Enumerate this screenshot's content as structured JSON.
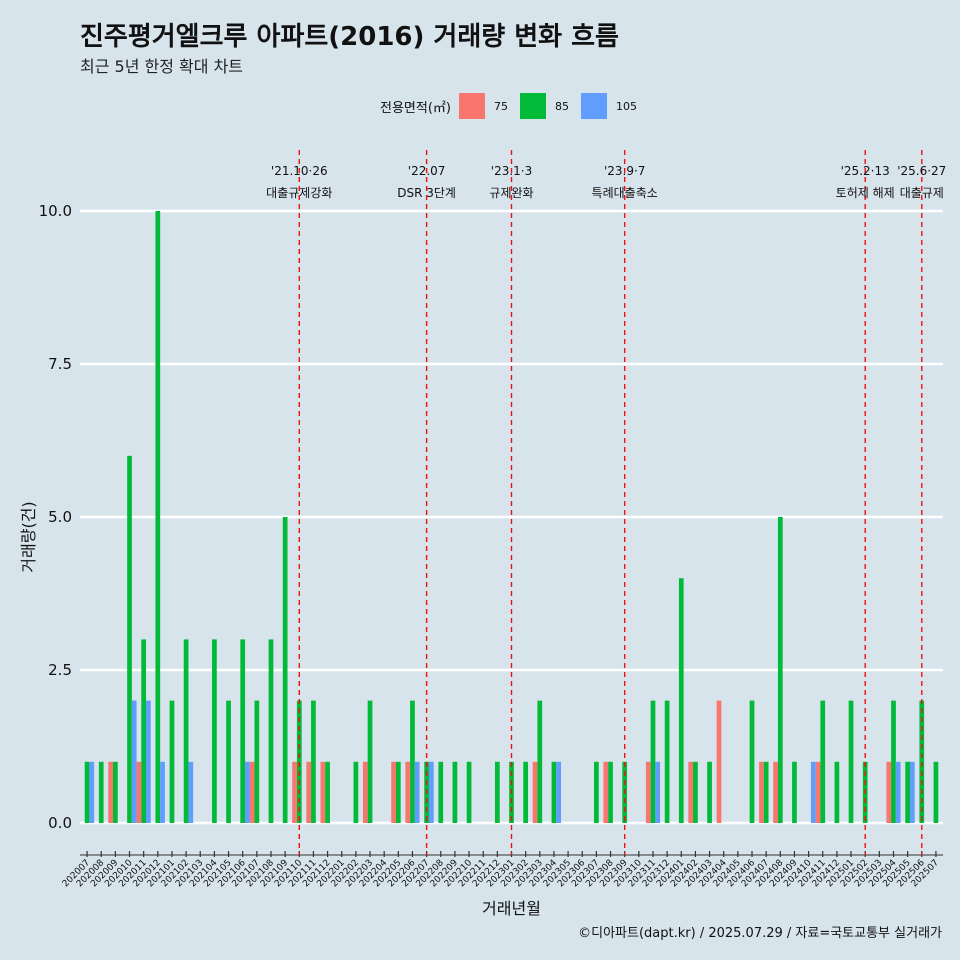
{
  "title": "진주평거엘크루 아파트(2016) 거래량 변화 흐름",
  "subtitle": "최근 5년 한정 확대 차트",
  "caption": "©디아파트(dapt.kr) / 2025.07.29 / 자료=국토교통부 실거래가",
  "legend": {
    "title": "전용면적(㎡)",
    "items": [
      {
        "label": "75",
        "color": "#f8766d"
      },
      {
        "label": "85",
        "color": "#00ba38"
      },
      {
        "label": "105",
        "color": "#619cff"
      }
    ]
  },
  "chart_data": {
    "type": "bar",
    "xlabel": "거래년월",
    "ylabel": "거래량(건)",
    "ylim": [
      -0.55,
      10.9
    ],
    "yticks": [
      0.0,
      2.5,
      5.0,
      7.5,
      10.0
    ],
    "ytick_labels": [
      "0.0",
      "2.5",
      "5.0",
      "7.5",
      "10.0"
    ],
    "categories": [
      "202007",
      "202008",
      "202009",
      "202010",
      "202011",
      "202012",
      "202101",
      "202102",
      "202103",
      "202104",
      "202105",
      "202106",
      "202107",
      "202108",
      "202109",
      "202110",
      "202111",
      "202112",
      "202201",
      "202202",
      "202203",
      "202204",
      "202205",
      "202206",
      "202207",
      "202208",
      "202209",
      "202210",
      "202211",
      "202212",
      "202301",
      "202302",
      "202303",
      "202304",
      "202305",
      "202306",
      "202307",
      "202308",
      "202309",
      "202310",
      "202311",
      "202312",
      "202401",
      "202402",
      "202403",
      "202404",
      "202405",
      "202406",
      "202407",
      "202408",
      "202409",
      "202410",
      "202411",
      "202412",
      "202501",
      "202502",
      "202503",
      "202504",
      "202505",
      "202506",
      "202507"
    ],
    "series": [
      {
        "name": "75",
        "color": "#f8766d",
        "values": [
          0,
          0,
          1,
          0,
          1,
          0,
          0,
          0,
          0,
          0,
          0,
          0,
          1,
          0,
          0,
          1,
          1,
          1,
          0,
          0,
          1,
          0,
          1,
          1,
          0,
          0,
          0,
          0,
          0,
          0,
          0,
          0,
          1,
          0,
          0,
          0,
          0,
          1,
          0,
          0,
          1,
          0,
          0,
          1,
          0,
          2,
          0,
          0,
          1,
          1,
          0,
          0,
          1,
          0,
          0,
          0,
          0,
          1,
          0,
          0,
          0
        ]
      },
      {
        "name": "85",
        "color": "#00ba38",
        "values": [
          1,
          1,
          1,
          6,
          3,
          10,
          2,
          3,
          0,
          3,
          2,
          3,
          2,
          3,
          5,
          2,
          2,
          1,
          0,
          1,
          2,
          0,
          1,
          2,
          1,
          1,
          1,
          1,
          0,
          1,
          1,
          1,
          2,
          1,
          0,
          0,
          1,
          1,
          1,
          0,
          2,
          2,
          4,
          1,
          1,
          0,
          0,
          2,
          1,
          5,
          1,
          0,
          2,
          1,
          2,
          1,
          0,
          2,
          1,
          2,
          1
        ]
      },
      {
        "name": "105",
        "color": "#619cff",
        "values": [
          1,
          0,
          0,
          2,
          2,
          1,
          0,
          1,
          0,
          0,
          0,
          1,
          0,
          0,
          0,
          0,
          0,
          0,
          0,
          0,
          0,
          0,
          0,
          1,
          1,
          0,
          0,
          0,
          0,
          0,
          0,
          0,
          0,
          1,
          0,
          0,
          0,
          0,
          0,
          0,
          1,
          0,
          0,
          0,
          0,
          0,
          0,
          0,
          0,
          0,
          0,
          1,
          0,
          0,
          0,
          0,
          0,
          1,
          1,
          0,
          0
        ]
      }
    ],
    "events": [
      {
        "date": "'21.10·26",
        "label": "대출규제강화",
        "x_index": 15.5
      },
      {
        "date": "'22.07",
        "label": "DSR 3단계",
        "x_index": 24.5
      },
      {
        "date": "'23.1·3",
        "label": "규제완화",
        "x_index": 30.5
      },
      {
        "date": "'23.9·7",
        "label": "특례대출축소",
        "x_index": 38.5
      },
      {
        "date": "'25.2·13",
        "label": "토허제 해제",
        "x_index": 55.5
      },
      {
        "date": "'25.6·27",
        "label": "대출규제",
        "x_index": 59.5
      }
    ]
  }
}
